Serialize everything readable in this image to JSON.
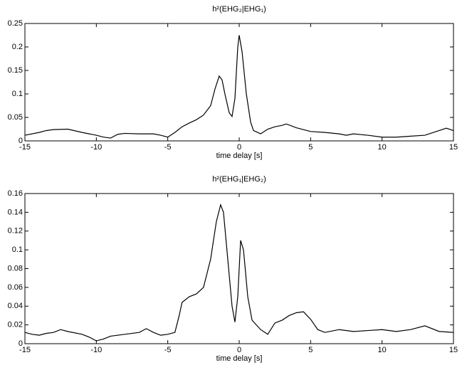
{
  "chart_data": [
    {
      "type": "line",
      "title": "h²(EHG₂|EHG₁)",
      "xlabel": "time delay [s]",
      "x": [
        -15,
        -14,
        -13.5,
        -13,
        -12,
        -11,
        -10.5,
        -10,
        -9.5,
        -9,
        -8.5,
        -8,
        -7,
        -6,
        -5.5,
        -5,
        -4.5,
        -4,
        -3.5,
        -3,
        -2.5,
        -2,
        -1.7,
        -1.4,
        -1.2,
        -1,
        -0.7,
        -0.5,
        -0.3,
        -0.1,
        0,
        0.2,
        0.5,
        0.8,
        1,
        1.5,
        2,
        2.5,
        3,
        3.3,
        4,
        5,
        6,
        7,
        7.5,
        8,
        9,
        10,
        11,
        12,
        13,
        14,
        14.5,
        15
      ],
      "series": [
        {
          "color": "#000000",
          "values": [
            0.012,
            0.018,
            0.022,
            0.024,
            0.025,
            0.018,
            0.015,
            0.012,
            0.008,
            0.006,
            0.014,
            0.016,
            0.015,
            0.015,
            0.012,
            0.008,
            0.018,
            0.03,
            0.038,
            0.045,
            0.055,
            0.075,
            0.11,
            0.138,
            0.13,
            0.1,
            0.06,
            0.052,
            0.09,
            0.2,
            0.225,
            0.19,
            0.1,
            0.04,
            0.022,
            0.015,
            0.025,
            0.03,
            0.033,
            0.036,
            0.028,
            0.02,
            0.018,
            0.015,
            0.012,
            0.015,
            0.012,
            0.008,
            0.008,
            0.01,
            0.012,
            0.022,
            0.027,
            0.022
          ]
        }
      ],
      "xlim": [
        -15,
        15
      ],
      "ylim": [
        0,
        0.25
      ],
      "xticks": [
        -15,
        -10,
        -5,
        0,
        5,
        10,
        15
      ],
      "yticks": [
        0,
        0.05,
        0.1,
        0.15,
        0.2,
        0.25
      ]
    },
    {
      "type": "line",
      "title": "h²(EHG₁|EHG₂)",
      "xlabel": "time delay [s]",
      "x": [
        -15,
        -14.5,
        -14,
        -13.5,
        -13,
        -12.5,
        -12,
        -11,
        -10.5,
        -10,
        -9.5,
        -9,
        -8,
        -7,
        -6.5,
        -6,
        -5.5,
        -5,
        -4.5,
        -4.2,
        -4,
        -3.5,
        -3,
        -2.5,
        -2,
        -1.6,
        -1.3,
        -1.1,
        -0.8,
        -0.5,
        -0.3,
        -0.1,
        0.1,
        0.3,
        0.6,
        0.9,
        1.2,
        1.5,
        2,
        2.5,
        3,
        3.5,
        4,
        4.5,
        5,
        5.5,
        6,
        7,
        8,
        9,
        10,
        11,
        12,
        13,
        14,
        15
      ],
      "series": [
        {
          "color": "#000000",
          "values": [
            0.012,
            0.01,
            0.009,
            0.011,
            0.012,
            0.015,
            0.013,
            0.01,
            0.007,
            0.003,
            0.005,
            0.008,
            0.01,
            0.012,
            0.016,
            0.012,
            0.009,
            0.01,
            0.012,
            0.03,
            0.044,
            0.05,
            0.053,
            0.06,
            0.09,
            0.13,
            0.148,
            0.14,
            0.09,
            0.04,
            0.023,
            0.05,
            0.11,
            0.1,
            0.05,
            0.025,
            0.02,
            0.015,
            0.01,
            0.022,
            0.025,
            0.03,
            0.033,
            0.034,
            0.026,
            0.015,
            0.012,
            0.015,
            0.013,
            0.014,
            0.015,
            0.013,
            0.015,
            0.019,
            0.013,
            0.012
          ]
        }
      ],
      "xlim": [
        -15,
        15
      ],
      "ylim": [
        0,
        0.16
      ],
      "xticks": [
        -15,
        -10,
        -5,
        0,
        5,
        10,
        15
      ],
      "yticks": [
        0,
        0.02,
        0.04,
        0.06,
        0.08,
        0.1,
        0.12,
        0.14,
        0.16
      ]
    }
  ]
}
